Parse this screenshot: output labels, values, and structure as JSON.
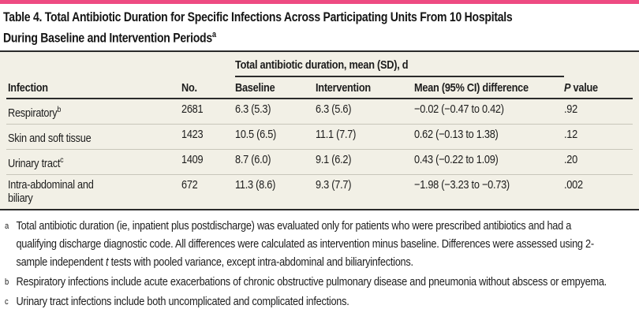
{
  "colors": {
    "accent": "#ee4b82",
    "table_background": "#f2f0e6",
    "rule_dark": "#2b2b2b",
    "row_separator": "#c8c6ba",
    "text": "#1d1d1d"
  },
  "table": {
    "title_line1": "Table 4. Total Antibiotic Duration for Specific Infections Across Participating Units From 10 Hospitals",
    "title_line2": "During Baseline and Intervention Periods",
    "title_sup": "a",
    "header": {
      "span_label": "Total antibiotic duration, mean (SD), d",
      "col_infection": "Infection",
      "col_no": "No.",
      "col_baseline": "Baseline",
      "col_intervention": "Intervention",
      "col_mean_diff": "Mean (95% CI) difference",
      "col_p_italic": "P",
      "col_p_rest": " value"
    },
    "rows": [
      {
        "infection": "Respiratory",
        "sup": "b",
        "no": "2681",
        "baseline": "6.3 (5.3)",
        "intervention": "6.3 (5.6)",
        "mean_diff": "−0.02 (−0.47 to 0.42)",
        "p": ".92"
      },
      {
        "infection": "Skin and soft tissue",
        "sup": "",
        "no": "1423",
        "baseline": "10.5 (6.5)",
        "intervention": "11.1 (7.7)",
        "mean_diff": "0.62 (−0.13 to 1.38)",
        "p": ".12"
      },
      {
        "infection": "Urinary tract",
        "sup": "c",
        "no": "1409",
        "baseline": "8.7 (6.0)",
        "intervention": "9.1 (6.2)",
        "mean_diff": "0.43 (−0.22 to 1.09)",
        "p": ".20"
      },
      {
        "infection": "Intra-abdominal and biliary",
        "sup": "",
        "no": "672",
        "baseline": "11.3 (8.6)",
        "intervention": "9.3 (7.7)",
        "mean_diff": "−1.98 (−3.23 to −0.73)",
        "p": ".002"
      }
    ]
  },
  "footnotes": [
    {
      "marker": "a",
      "pre": "Total antibiotic duration (ie, inpatient plus postdischarge) was evaluated only for patients who were prescribed antibiotics and had a qualifying discharge diagnostic code. All differences were calculated as intervention minus baseline. Differences were assessed using 2-sample independent ",
      "italic": "t",
      "post": " tests with pooled variance, except intra-abdominal and biliaryinfections."
    },
    {
      "marker": "b",
      "pre": "Respiratory infections include acute exacerbations of chronic obstructive pulmonary disease and pneumonia without abscess or empyema.",
      "italic": "",
      "post": ""
    },
    {
      "marker": "c",
      "pre": "Urinary tract infections include both uncomplicated and complicated infections.",
      "italic": "",
      "post": ""
    }
  ]
}
